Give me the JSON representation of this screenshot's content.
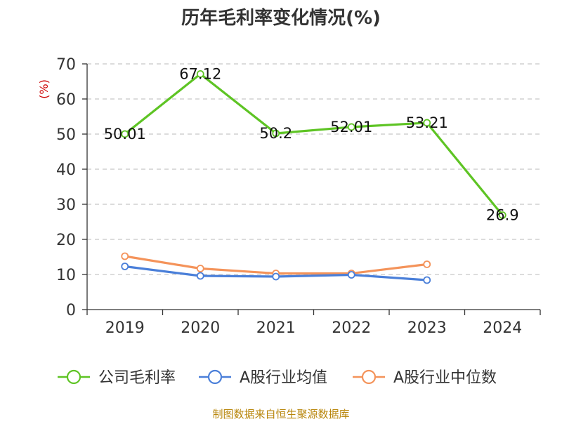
{
  "chart_data": {
    "type": "line",
    "title": "历年毛利率变化情况(%)",
    "ylabel": "(%)",
    "xlabel": "",
    "ylim": [
      0,
      70
    ],
    "yticks": [
      0,
      10,
      20,
      30,
      40,
      50,
      60,
      70
    ],
    "categories": [
      "2019",
      "2020",
      "2021",
      "2022",
      "2023",
      "2024"
    ],
    "grid": "horizontal-dashed",
    "legend_position": "bottom",
    "series": [
      {
        "name": "公司毛利率",
        "color": "#5ec424",
        "values": [
          50.01,
          67.12,
          50.2,
          52.01,
          53.21,
          26.9
        ],
        "labels": [
          "50.01",
          "67.12",
          "50.2",
          "52.01",
          "53.21",
          "26.9"
        ]
      },
      {
        "name": "A股行业均值",
        "color": "#4a7fd9",
        "values": [
          12.3,
          9.6,
          9.4,
          9.9,
          8.4,
          null
        ]
      },
      {
        "name": "A股行业中位数",
        "color": "#f4935a",
        "values": [
          15.2,
          11.7,
          10.3,
          10.3,
          12.9,
          null
        ]
      }
    ],
    "source": "制图数据来自恒生聚源数据库"
  }
}
